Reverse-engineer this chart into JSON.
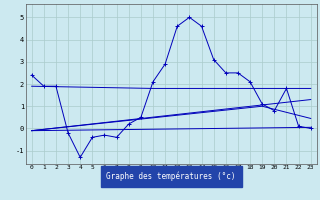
{
  "xlabel": "Graphe des températures (°c)",
  "x_ticks": [
    0,
    1,
    2,
    3,
    4,
    5,
    6,
    7,
    8,
    9,
    10,
    11,
    12,
    13,
    14,
    15,
    16,
    17,
    18,
    19,
    20,
    21,
    22,
    23
  ],
  "ylim": [
    -1.6,
    5.6
  ],
  "xlim": [
    -0.5,
    23.5
  ],
  "yticks": [
    -1,
    0,
    1,
    2,
    3,
    4,
    5
  ],
  "bg_color": "#cce9f0",
  "line_color": "#0000bb",
  "grid_color": "#aacccc",
  "series1_x": [
    0,
    1,
    2,
    3,
    4,
    5,
    6,
    7,
    8,
    9,
    10,
    11,
    12,
    13,
    14,
    15,
    16,
    17,
    18,
    19,
    20,
    21,
    22,
    23
  ],
  "series1_y": [
    2.4,
    1.9,
    1.9,
    -0.2,
    -1.3,
    -0.4,
    -0.3,
    -0.4,
    0.2,
    0.5,
    2.1,
    2.9,
    4.6,
    5.0,
    4.6,
    3.1,
    2.5,
    2.5,
    2.1,
    1.1,
    0.8,
    1.8,
    0.1,
    0.0
  ],
  "series2_x": [
    0,
    10,
    19,
    23
  ],
  "series2_y": [
    1.9,
    1.8,
    1.8,
    1.8
  ],
  "series3_x": [
    0,
    23
  ],
  "series3_y": [
    -0.1,
    0.05
  ],
  "series4_x": [
    0,
    23
  ],
  "series4_y": [
    -0.1,
    1.3
  ],
  "series5_x": [
    0,
    19,
    23
  ],
  "series5_y": [
    -0.1,
    1.0,
    0.45
  ]
}
